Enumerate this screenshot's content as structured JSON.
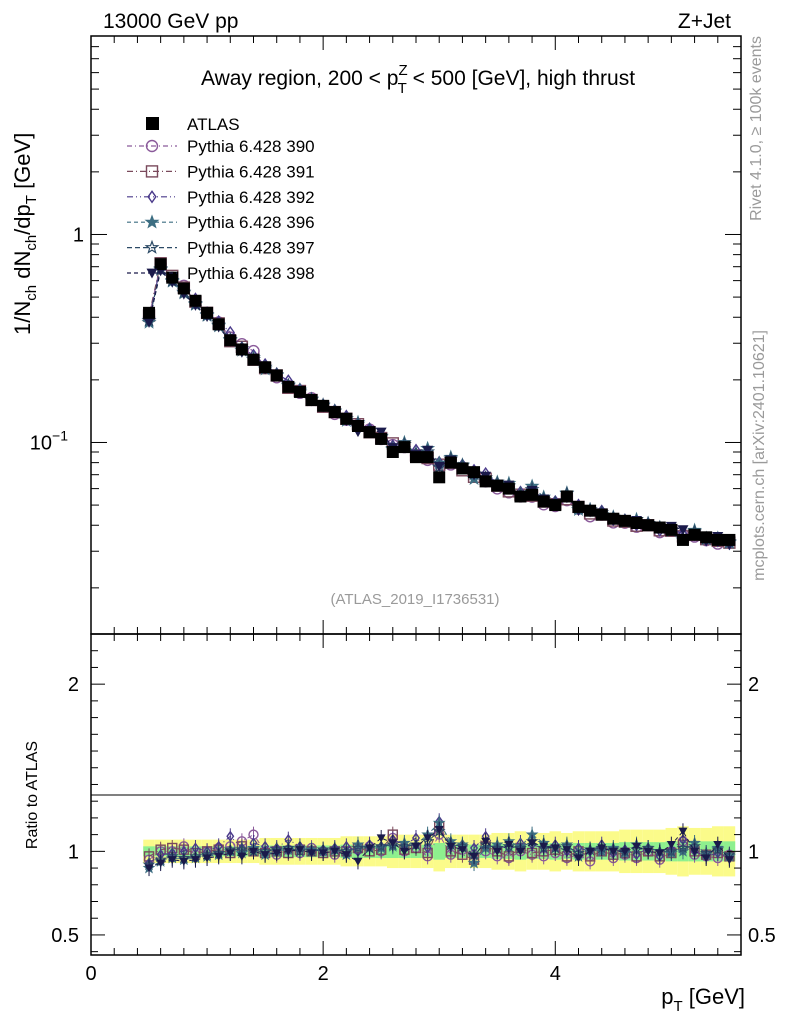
{
  "header": {
    "left": "13000 GeV pp",
    "right": "Z+Jet"
  },
  "side_text": {
    "rivet": "Rivet 4.1.0, ≥ 100k events",
    "mcplots": "mcplots.cern.ch [arXiv:2401.10621]"
  },
  "chart_data": {
    "type": "scatter",
    "title": "Away region, 200 < p_T^Z < 500 [GeV], high thrust",
    "title_parts": {
      "pre": "Away region, 200 < p",
      "sup": "Z",
      "sub": "T",
      "post": " < 500 [GeV], high thrust"
    },
    "analysis_label": "(ATLAS_2019_I1736531)",
    "xlabel": "p_T [GeV]",
    "xlabel_parts": {
      "main": "p",
      "sub": "T",
      "unit": " [GeV]"
    },
    "ylabel": "1/N_ch dN_ch/dp_T [GeV]",
    "ratio_ylabel": "Ratio to ATLAS",
    "xlim": [
      0,
      5.6
    ],
    "ylim": [
      0.012,
      9
    ],
    "yscale": "log",
    "ratio_ylim": [
      0.38,
      2.3
    ],
    "x_ticks": [
      "0",
      "2",
      "4"
    ],
    "y_ticks": [
      {
        "v": 1,
        "label": "1"
      },
      {
        "v": 0.1,
        "label": "10",
        "sup": "−1"
      }
    ],
    "ratio_ticks": [
      "0.5",
      "1",
      "2"
    ],
    "x": [
      0.5,
      0.6,
      0.7,
      0.8,
      0.9,
      1.0,
      1.1,
      1.2,
      1.3,
      1.4,
      1.5,
      1.6,
      1.7,
      1.8,
      1.9,
      2.0,
      2.1,
      2.2,
      2.3,
      2.4,
      2.5,
      2.6,
      2.7,
      2.8,
      2.9,
      3.0,
      3.1,
      3.2,
      3.3,
      3.4,
      3.5,
      3.6,
      3.7,
      3.8,
      3.9,
      4.0,
      4.1,
      4.2,
      4.3,
      4.4,
      4.5,
      4.6,
      4.7,
      4.8,
      4.9,
      5.0,
      5.1,
      5.2,
      5.3,
      5.4,
      5.5
    ],
    "atlas": [
      0.42,
      0.72,
      0.62,
      0.55,
      0.48,
      0.42,
      0.37,
      0.31,
      0.28,
      0.25,
      0.23,
      0.21,
      0.185,
      0.175,
      0.16,
      0.15,
      0.14,
      0.13,
      0.12,
      0.112,
      0.104,
      0.09,
      0.095,
      0.085,
      0.085,
      0.068,
      0.08,
      0.075,
      0.072,
      0.065,
      0.062,
      0.06,
      0.055,
      0.056,
      0.052,
      0.05,
      0.055,
      0.049,
      0.047,
      0.045,
      0.043,
      0.042,
      0.041,
      0.04,
      0.039,
      0.038,
      0.034,
      0.036,
      0.035,
      0.034,
      0.034
    ],
    "band_outer": [
      0.07,
      0.07,
      0.07,
      0.07,
      0.07,
      0.07,
      0.07,
      0.07,
      0.07,
      0.07,
      0.08,
      0.08,
      0.08,
      0.08,
      0.08,
      0.08,
      0.08,
      0.09,
      0.09,
      0.09,
      0.09,
      0.1,
      0.1,
      0.1,
      0.1,
      0.12,
      0.1,
      0.1,
      0.1,
      0.1,
      0.11,
      0.11,
      0.12,
      0.11,
      0.11,
      0.12,
      0.11,
      0.12,
      0.12,
      0.12,
      0.12,
      0.13,
      0.13,
      0.13,
      0.13,
      0.14,
      0.15,
      0.14,
      0.14,
      0.15,
      0.15
    ],
    "band_inner": [
      0.03,
      0.03,
      0.03,
      0.03,
      0.03,
      0.03,
      0.03,
      0.03,
      0.03,
      0.03,
      0.035,
      0.035,
      0.035,
      0.035,
      0.035,
      0.035,
      0.035,
      0.04,
      0.04,
      0.04,
      0.04,
      0.04,
      0.04,
      0.04,
      0.04,
      0.05,
      0.04,
      0.04,
      0.04,
      0.04,
      0.045,
      0.045,
      0.05,
      0.045,
      0.045,
      0.05,
      0.045,
      0.05,
      0.05,
      0.05,
      0.05,
      0.055,
      0.055,
      0.055,
      0.055,
      0.06,
      0.06,
      0.06,
      0.06,
      0.06,
      0.06
    ],
    "series": [
      {
        "name": "Pythia 6.428 390",
        "marker": "circle",
        "color": "#8a5a9a",
        "ratio": [
          0.95,
          1.0,
          1.0,
          1.03,
          0.98,
          1.0,
          1.02,
          1.03,
          1.06,
          1.1,
          1.0,
          0.98,
          1.01,
          0.99,
          1.02,
          1.0,
          0.98,
          0.99,
          1.01,
          1.03,
          1.0,
          1.08,
          1.0,
          1.02,
          0.97,
          1.1,
          0.98,
          1.01,
          0.98,
          1.0,
          0.97,
          0.96,
          1.0,
          0.98,
          0.97,
          0.99,
          0.96,
          0.98,
          0.94,
          1.0,
          0.96,
          0.98,
          0.96,
          1.0,
          0.95,
          1.0,
          1.06,
          0.98,
          0.97,
          0.96,
          0.98
        ]
      },
      {
        "name": "Pythia 6.428 391",
        "marker": "square",
        "color": "#7a4a5c",
        "ratio": [
          0.97,
          1.01,
          1.02,
          1.01,
          0.99,
          1.0,
          1.01,
          0.99,
          1.03,
          1.0,
          0.99,
          1.0,
          0.99,
          1.01,
          1.0,
          0.99,
          1.0,
          1.0,
          1.02,
          1.0,
          1.01,
          1.1,
          1.01,
          1.02,
          0.99,
          1.15,
          1.0,
          0.98,
          0.95,
          1.03,
          1.0,
          0.97,
          1.02,
          0.99,
          1.0,
          1.01,
          0.97,
          1.0,
          0.97,
          1.0,
          0.98,
          0.99,
          0.97,
          1.0,
          0.97,
          0.99,
          1.04,
          1.0,
          0.98,
          0.99,
          0.97
        ]
      },
      {
        "name": "Pythia 6.428 392",
        "marker": "diamond",
        "color": "#4a3a8a",
        "ratio": [
          0.93,
          0.98,
          0.99,
          1.0,
          1.02,
          1.0,
          1.03,
          1.09,
          1.02,
          1.05,
          1.03,
          1.02,
          1.07,
          1.03,
          1.01,
          1.01,
          1.02,
          1.03,
          1.0,
          1.04,
          1.03,
          1.07,
          1.04,
          1.08,
          1.02,
          1.18,
          1.03,
          1.04,
          1.02,
          1.09,
          1.03,
          1.02,
          1.05,
          1.04,
          1.02,
          1.04,
          1.0,
          1.02,
          1.0,
          1.04,
          0.99,
          1.01,
          0.98,
          1.02,
          0.97,
          1.01,
          1.07,
          1.0,
          0.97,
          0.99,
          0.96
        ]
      },
      {
        "name": "Pythia 6.428 396",
        "marker": "star",
        "color": "#3d6e82",
        "ratio": [
          0.9,
          0.94,
          0.96,
          0.95,
          0.96,
          0.97,
          0.98,
          1.0,
          0.99,
          1.02,
          0.98,
          1.0,
          1.01,
          1.02,
          1.01,
          1.0,
          1.01,
          0.98,
          1.04,
          1.02,
          1.02,
          1.03,
          1.05,
          1.04,
          1.1,
          1.17,
          1.06,
          1.04,
          0.93,
          1.02,
          1.04,
          1.06,
          1.03,
          1.1,
          1.05,
          1.02,
          1.04,
          0.97,
          1.01,
          1.0,
          1.02,
          0.99,
          1.04,
          1.02,
          1.0,
          0.99,
          1.0,
          1.05,
          0.98,
          1.02,
          0.97
        ]
      },
      {
        "name": "Pythia 6.428 397",
        "marker": "star-open",
        "color": "#2c4a66",
        "ratio": [
          0.92,
          0.95,
          0.97,
          0.96,
          0.97,
          0.98,
          0.99,
          1.01,
          1.01,
          1.0,
          1.0,
          1.01,
          1.02,
          1.0,
          1.0,
          1.01,
          1.01,
          1.0,
          1.02,
          1.02,
          1.03,
          1.04,
          1.03,
          1.04,
          1.06,
          1.12,
          1.04,
          1.03,
          0.98,
          1.04,
          1.02,
          1.03,
          1.02,
          1.06,
          1.02,
          1.02,
          1.03,
          0.99,
          1.01,
          1.02,
          1.01,
          1.0,
          1.01,
          1.02,
          1.0,
          1.0,
          1.02,
          1.03,
          0.99,
          1.01,
          0.98
        ]
      },
      {
        "name": "Pythia 6.428 398",
        "marker": "triangle-down",
        "color": "#1a1a4a",
        "ratio": [
          0.9,
          0.93,
          0.95,
          0.94,
          0.95,
          0.96,
          0.97,
          0.99,
          0.97,
          1.0,
          0.98,
          0.99,
          1.0,
          1.01,
          0.99,
          0.99,
          1.0,
          0.98,
          0.94,
          1.02,
          1.08,
          1.05,
          1.0,
          1.03,
          1.08,
          1.13,
          1.03,
          1.01,
          0.97,
          1.06,
          1.0,
          1.04,
          1.0,
          1.05,
          1.03,
          1.02,
          1.01,
          0.96,
          1.0,
          1.02,
          1.0,
          1.0,
          1.03,
          1.0,
          0.99,
          1.04,
          1.12,
          1.0,
          0.96,
          1.04,
          0.95
        ]
      }
    ],
    "legend_position": "top-left",
    "data_label": "ATLAS"
  }
}
